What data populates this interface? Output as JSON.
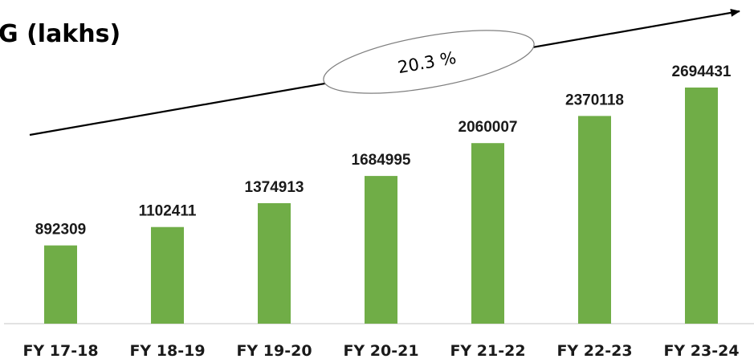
{
  "title": "G (lakhs)",
  "annotation": {
    "cagr_label": "20.3 %"
  },
  "colors": {
    "bar": "#70AD47",
    "axis": "#d9d9d9",
    "text": "#1a1a1a",
    "arrow": "#000000"
  },
  "chart_data": {
    "type": "bar",
    "categories": [
      "FY 17-18",
      "FY 18-19",
      "FY 19-20",
      "FY 20-21",
      "FY 21-22",
      "FY 22-23",
      "FY 23-24"
    ],
    "values": [
      892309,
      1102411,
      1374913,
      1684995,
      2060007,
      2370118,
      2694431
    ],
    "data_labels": [
      "892309",
      "1102411",
      "1374913",
      "1684995",
      "2060007",
      "2370118",
      "2694431"
    ],
    "title": "G (lakhs)",
    "xlabel": "",
    "ylabel": "",
    "ylim": [
      0,
      2694431
    ],
    "grid": false,
    "legend": "none"
  }
}
